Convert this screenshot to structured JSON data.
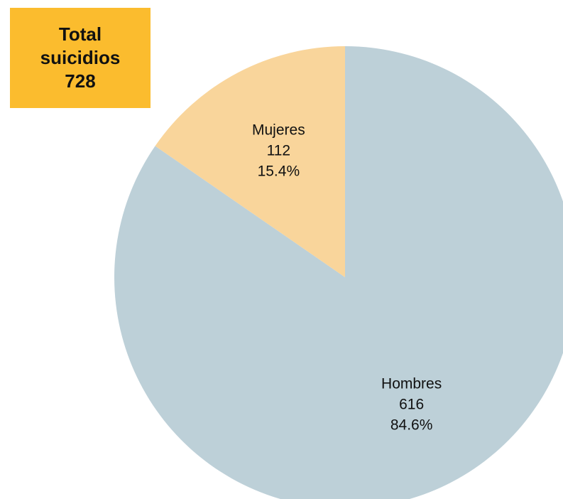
{
  "total_box": {
    "line1": "Total",
    "line2": "suicidios",
    "value": "728"
  },
  "chart_data": {
    "type": "pie",
    "title": "",
    "start_angle_deg": 0,
    "direction": "clockwise",
    "categories": [
      "Hombres",
      "Mujeres"
    ],
    "values": [
      616,
      112
    ],
    "percent_labels": [
      "84.6%",
      "15.4%"
    ],
    "colors": [
      "#bdd0d8",
      "#f9d59b"
    ],
    "total": 728
  }
}
